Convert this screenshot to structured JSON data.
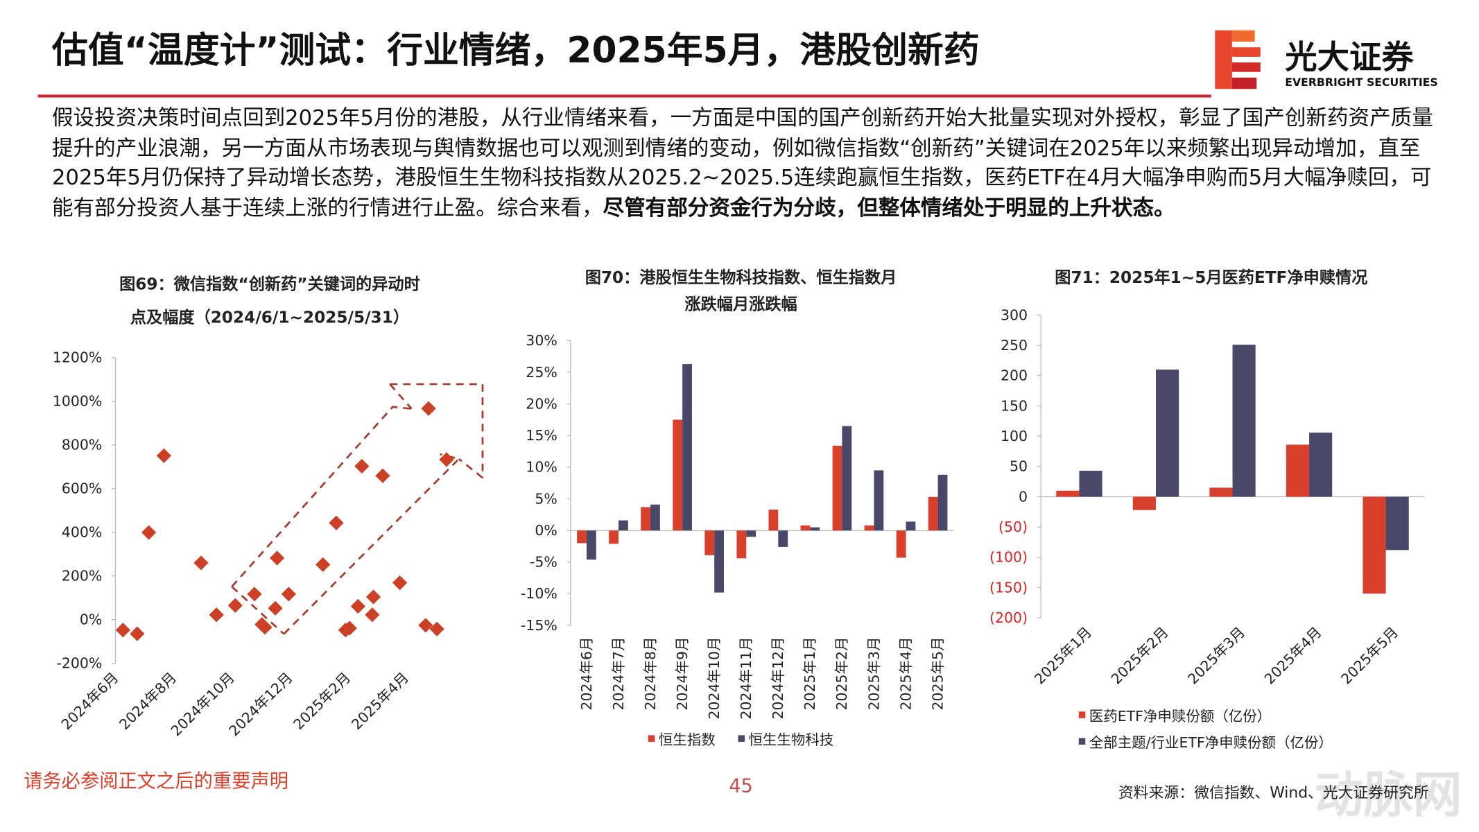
{
  "title": "估值“温度计”测试：行业情绪，2025年5月，港股创新药",
  "logo": {
    "name": "光大证券",
    "name_en": "EVERBRIGHT SECURITIES"
  },
  "body": {
    "text": "假设投资决策时间点回到2025年5月份的港股，从行业情绪来看，一方面是中国的国产创新药开始大批量实现对外授权，彰显了国产创新药资产质量提升的产业浪潮，另一方面从市场表现与舆情数据也可以观测到情绪的变动，例如微信指数“创新药”关键词在2025年以来频繁出现异动增加，直至2025年5月仍保持了异动增长态势，港股恒生生物科技指数从2025.2~2025.5连续跑赢恒生指数，医药ETF在4月大幅净申购而5月大幅净赎回，可能有部分投资人基于连续上涨的行情进行止盈。综合来看，",
    "bold": "尽管有部分资金行为分歧，但整体情绪处于明显的上升状态。"
  },
  "chart_data": [
    {
      "type": "scatter",
      "title": [
        "图69：微信指数“创新药”关键词的异动时",
        "点及幅度（2024/6/1~2025/5/31）"
      ],
      "color": "#cc4025",
      "x": [
        0.26,
        0.75,
        1.15,
        1.67,
        2.95,
        3.48,
        4.13,
        4.79,
        5.05,
        5.15,
        5.51,
        5.57,
        5.97,
        7.15,
        7.61,
        7.93,
        8.07,
        8.36,
        8.49,
        8.85,
        8.89,
        9.21,
        9.8,
        10.69,
        10.79,
        11.08,
        11.41
      ],
      "values": [
        -48,
        -65,
        399,
        751,
        260,
        22,
        65,
        117,
        -22,
        -35,
        52,
        282,
        117,
        252,
        443,
        -48,
        -39,
        61,
        703,
        22,
        104,
        659,
        169,
        -26,
        967,
        -43,
        733
      ],
      "xlim": [
        0,
        12
      ],
      "xticks": [
        {
          "value": 0,
          "label": "2024年6月"
        },
        {
          "value": 2,
          "label": "2024年8月"
        },
        {
          "value": 4,
          "label": "2024年10月"
        },
        {
          "value": 6,
          "label": "2024年12月"
        },
        {
          "value": 8,
          "label": "2025年2月"
        },
        {
          "value": 10,
          "label": "2025年4月"
        }
      ],
      "ylim": [
        -200,
        1200
      ],
      "yticks": [
        {
          "value": 1200,
          "label": "1200%"
        },
        {
          "value": 1000,
          "label": "1000%"
        },
        {
          "value": 800,
          "label": "800%"
        },
        {
          "value": 600,
          "label": "600%"
        },
        {
          "value": 400,
          "label": "400%"
        },
        {
          "value": 200,
          "label": "200%"
        },
        {
          "value": 0,
          "label": "0%"
        },
        {
          "value": -200,
          "label": "-200%"
        }
      ],
      "grid": false
    },
    {
      "type": "bar",
      "title": [
        "图70：港股恒生生物科技指数、恒生指数月",
        "涨跌幅月涨跌幅"
      ],
      "categories": [
        "2024年6月",
        "2024年7月",
        "2024年8月",
        "2024年9月",
        "2024年10月",
        "2024年11月",
        "2024年12月",
        "2025年1月",
        "2025年2月",
        "2025年3月",
        "2025年4月",
        "2025年5月"
      ],
      "series": [
        {
          "name": "恒生指数",
          "color": "#d9402b",
          "values": [
            -2,
            -2.1,
            3.7,
            17.5,
            -3.9,
            -4.4,
            3.3,
            0.8,
            13.4,
            0.8,
            -4.3,
            5.3
          ]
        },
        {
          "name": "恒生生物科技",
          "color": "#4a4868",
          "values": [
            -4.6,
            1.6,
            4.1,
            26.3,
            -9.8,
            -1,
            -2.6,
            0.5,
            16.5,
            9.5,
            1.4,
            8.8
          ]
        }
      ],
      "ylim": [
        -15,
        30
      ],
      "yticks": [
        {
          "value": 30,
          "label": "30%"
        },
        {
          "value": 25,
          "label": "25%"
        },
        {
          "value": 20,
          "label": "20%"
        },
        {
          "value": 15,
          "label": "15%"
        },
        {
          "value": 10,
          "label": "10%"
        },
        {
          "value": 5,
          "label": "5%"
        },
        {
          "value": 0,
          "label": "0%"
        },
        {
          "value": -5,
          "label": "-5%"
        },
        {
          "value": -10,
          "label": "-10%"
        },
        {
          "value": -15,
          "label": "-15%"
        }
      ],
      "legend": "bottom",
      "grid": false
    },
    {
      "type": "bar",
      "title": [
        "图71：2025年1~5月医药ETF净申赎情况"
      ],
      "categories": [
        "2025年1月",
        "2025年2月",
        "2025年3月",
        "2025年4月",
        "2025年5月"
      ],
      "series": [
        {
          "name": "医药ETF净申赎份额（亿份）",
          "color": "#d9402b",
          "values": [
            10,
            -22,
            15,
            86,
            -160
          ]
        },
        {
          "name": "全部主题/行业ETF净申赎份额（亿份）",
          "color": "#4a4868",
          "values": [
            43,
            210,
            251,
            106,
            -88
          ]
        }
      ],
      "ylim": [
        -200,
        300
      ],
      "yticks": [
        300,
        250,
        200,
        150,
        100,
        50,
        0,
        {
          "value": -50,
          "label": "(50)"
        },
        {
          "value": -100,
          "label": "(100)"
        },
        {
          "value": -150,
          "label": "(150)"
        },
        {
          "value": -200,
          "label": "(200)"
        }
      ],
      "negative_tick_color": "#e02020",
      "legend": "bottom",
      "grid": false
    }
  ],
  "footer": {
    "disclaimer": "请务必参阅正文之后的重要声明",
    "page": "45",
    "source": "资料来源：微信指数、Wind、光大证券研究所",
    "watermark": "动脉网"
  }
}
